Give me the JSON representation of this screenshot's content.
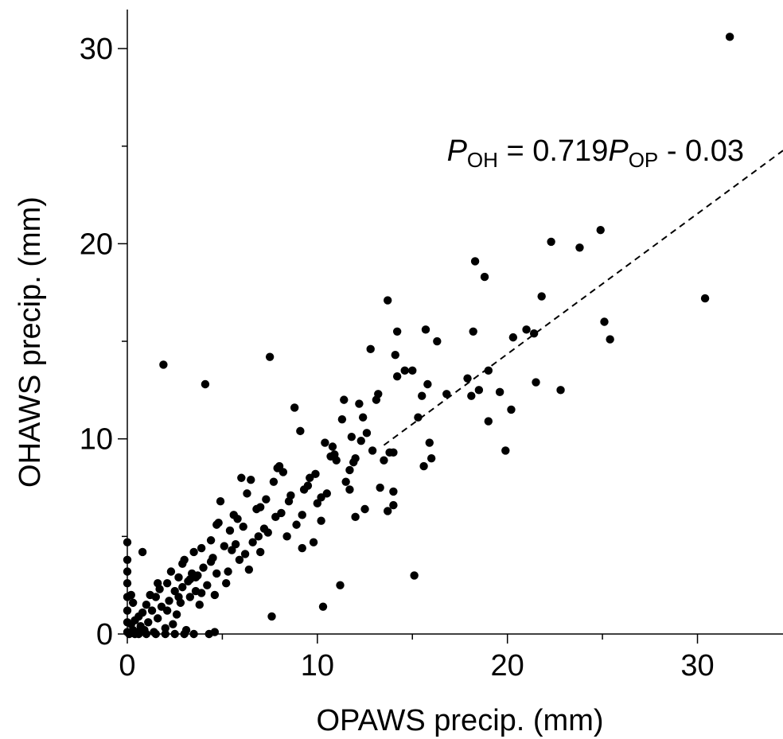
{
  "chart_data": {
    "type": "scatter",
    "xlabel": "OPAWS precip. (mm)",
    "ylabel": "OHAWS  precip. (mm)",
    "xlim": [
      0,
      34.5
    ],
    "ylim": [
      0,
      32
    ],
    "x_ticks": [
      0,
      10,
      20,
      30
    ],
    "y_ticks": [
      0,
      10,
      20,
      30
    ],
    "grid": false,
    "legend": "none",
    "point_color": "#000000",
    "fit_line": {
      "slope": 0.719,
      "intercept": -0.03,
      "style": "dashed",
      "equation": {
        "lhs_var": "P",
        "lhs_sub": "OH",
        "eq_mid": " = 0.719",
        "rhs_var": "P",
        "rhs_sub": "OP",
        "rhs_tail": " - 0.03"
      }
    },
    "points": [
      [
        31.7,
        30.6
      ],
      [
        30.4,
        17.2
      ],
      [
        25.4,
        15.1
      ],
      [
        25.1,
        16.0
      ],
      [
        24.9,
        20.7
      ],
      [
        23.8,
        19.8
      ],
      [
        22.8,
        12.5
      ],
      [
        22.3,
        20.1
      ],
      [
        21.8,
        17.3
      ],
      [
        21.5,
        12.9
      ],
      [
        21.4,
        15.4
      ],
      [
        21.0,
        15.6
      ],
      [
        20.3,
        15.2
      ],
      [
        20.2,
        11.5
      ],
      [
        19.9,
        9.4
      ],
      [
        19.6,
        12.4
      ],
      [
        19.0,
        13.5
      ],
      [
        19.0,
        10.9
      ],
      [
        18.8,
        18.3
      ],
      [
        18.5,
        12.5
      ],
      [
        18.3,
        19.1
      ],
      [
        18.2,
        15.5
      ],
      [
        18.1,
        12.2
      ],
      [
        17.9,
        13.1
      ],
      [
        16.8,
        12.3
      ],
      [
        16.3,
        15.0
      ],
      [
        16.0,
        9.0
      ],
      [
        15.9,
        9.8
      ],
      [
        15.8,
        12.8
      ],
      [
        15.7,
        15.6
      ],
      [
        15.6,
        8.6
      ],
      [
        15.5,
        12.2
      ],
      [
        15.3,
        11.1
      ],
      [
        15.1,
        3.0
      ],
      [
        15.0,
        13.5
      ],
      [
        14.6,
        13.5
      ],
      [
        14.2,
        15.5
      ],
      [
        14.2,
        13.2
      ],
      [
        14.1,
        14.3
      ],
      [
        14.0,
        9.3
      ],
      [
        14.0,
        7.3
      ],
      [
        14.0,
        6.6
      ],
      [
        13.8,
        9.3
      ],
      [
        13.7,
        17.1
      ],
      [
        13.7,
        6.3
      ],
      [
        13.3,
        7.5
      ],
      [
        13.2,
        12.3
      ],
      [
        13.1,
        12.0
      ],
      [
        12.8,
        14.6
      ],
      [
        12.6,
        10.3
      ],
      [
        12.5,
        6.4
      ],
      [
        12.4,
        11.1
      ],
      [
        12.3,
        9.9
      ],
      [
        12.2,
        11.8
      ],
      [
        12.0,
        9.0
      ],
      [
        12.0,
        6.0
      ],
      [
        11.8,
        10.1
      ],
      [
        11.7,
        8.4
      ],
      [
        11.5,
        7.8
      ],
      [
        11.4,
        12.0
      ],
      [
        11.3,
        11.0
      ],
      [
        11.2,
        2.5
      ],
      [
        11.0,
        8.9
      ],
      [
        10.9,
        9.2
      ],
      [
        10.7,
        9.1
      ],
      [
        10.5,
        7.2
      ],
      [
        10.4,
        9.8
      ],
      [
        10.3,
        1.4
      ],
      [
        10.2,
        5.8
      ],
      [
        10.0,
        6.7
      ],
      [
        9.8,
        4.7
      ],
      [
        9.6,
        8.0
      ],
      [
        9.3,
        7.4
      ],
      [
        9.2,
        6.1
      ],
      [
        9.1,
        10.4
      ],
      [
        8.8,
        11.6
      ],
      [
        8.5,
        6.8
      ],
      [
        8.4,
        5.0
      ],
      [
        8.2,
        8.3
      ],
      [
        8.0,
        8.6
      ],
      [
        7.9,
        8.5
      ],
      [
        7.7,
        7.8
      ],
      [
        7.5,
        14.2
      ],
      [
        7.6,
        0.9
      ],
      [
        7.3,
        6.9
      ],
      [
        7.2,
        5.4
      ],
      [
        7.0,
        4.2
      ],
      [
        6.8,
        6.4
      ],
      [
        6.5,
        7.9
      ],
      [
        6.3,
        7.2
      ],
      [
        6.1,
        5.5
      ],
      [
        6.0,
        8.0
      ],
      [
        5.9,
        3.8
      ],
      [
        5.7,
        4.6
      ],
      [
        5.6,
        6.1
      ],
      [
        5.4,
        5.3
      ],
      [
        5.3,
        3.2
      ],
      [
        5.1,
        4.5
      ],
      [
        4.9,
        6.8
      ],
      [
        4.8,
        5.7
      ],
      [
        4.7,
        3.1
      ],
      [
        4.6,
        2.0
      ],
      [
        4.5,
        3.9
      ],
      [
        4.4,
        4.8
      ],
      [
        4.3,
        0.0
      ],
      [
        4.2,
        2.5
      ],
      [
        4.1,
        12.8
      ],
      [
        4.0,
        3.4
      ],
      [
        3.9,
        4.4
      ],
      [
        3.8,
        1.5
      ],
      [
        3.7,
        3.0
      ],
      [
        3.6,
        2.2
      ],
      [
        3.5,
        4.2
      ],
      [
        3.4,
        3.1
      ],
      [
        3.3,
        1.9
      ],
      [
        3.2,
        2.7
      ],
      [
        3.1,
        0.2
      ],
      [
        3.0,
        3.8
      ],
      [
        2.9,
        2.4
      ],
      [
        2.8,
        1.6
      ],
      [
        2.7,
        2.9
      ],
      [
        2.6,
        1.0
      ],
      [
        2.5,
        2.2
      ],
      [
        2.4,
        0.5
      ],
      [
        2.3,
        3.2
      ],
      [
        2.2,
        1.7
      ],
      [
        2.1,
        2.6
      ],
      [
        2.0,
        0.3
      ],
      [
        1.9,
        13.8
      ],
      [
        1.8,
        1.4
      ],
      [
        1.7,
        2.3
      ],
      [
        1.6,
        0.8
      ],
      [
        1.5,
        1.9
      ],
      [
        1.4,
        0.1
      ],
      [
        1.3,
        1.2
      ],
      [
        1.2,
        2.0
      ],
      [
        1.1,
        0.6
      ],
      [
        1.0,
        1.5
      ],
      [
        0.9,
        0.2
      ],
      [
        0.8,
        1.1
      ],
      [
        0.8,
        4.2
      ],
      [
        0.7,
        0.4
      ],
      [
        0.6,
        0.9
      ],
      [
        0.5,
        0.1
      ],
      [
        0.4,
        0.7
      ],
      [
        0.3,
        0.2
      ],
      [
        0.2,
        0.5
      ],
      [
        0.1,
        0.0
      ],
      [
        0.0,
        4.7
      ],
      [
        0.0,
        3.8
      ],
      [
        0.0,
        3.2
      ],
      [
        0.0,
        2.6
      ],
      [
        0.0,
        1.9
      ],
      [
        0.0,
        1.2
      ],
      [
        0.0,
        0.6
      ],
      [
        0.0,
        0.1
      ],
      [
        0.2,
        2.0
      ],
      [
        0.3,
        1.6
      ],
      [
        0.4,
        0.0
      ],
      [
        0.6,
        0.0
      ],
      [
        1.0,
        0.0
      ],
      [
        1.5,
        0.0
      ],
      [
        2.0,
        0.0
      ],
      [
        2.5,
        0.0
      ],
      [
        3.0,
        0.0
      ],
      [
        3.5,
        0.0
      ],
      [
        4.6,
        0.1
      ],
      [
        9.2,
        4.4
      ],
      [
        7.0,
        6.5
      ],
      [
        6.6,
        4.7
      ],
      [
        5.8,
        5.9
      ],
      [
        6.9,
        5.0
      ],
      [
        8.9,
        5.6
      ],
      [
        10.2,
        7.0
      ],
      [
        11.7,
        7.4
      ],
      [
        12.9,
        9.4
      ],
      [
        6.4,
        3.3
      ],
      [
        5.2,
        2.6
      ],
      [
        4.7,
        5.6
      ],
      [
        3.9,
        2.1
      ],
      [
        3.3,
        2.8
      ],
      [
        2.9,
        3.6
      ],
      [
        2.1,
        1.2
      ],
      [
        1.6,
        2.6
      ],
      [
        7.8,
        6.0
      ],
      [
        8.6,
        7.1
      ],
      [
        9.9,
        8.2
      ],
      [
        10.8,
        9.6
      ],
      [
        11.9,
        8.8
      ],
      [
        13.5,
        8.9
      ],
      [
        6.2,
        4.1
      ],
      [
        5.5,
        4.3
      ],
      [
        7.4,
        5.2
      ],
      [
        8.1,
        6.2
      ],
      [
        9.5,
        7.6
      ],
      [
        4.4,
        3.7
      ],
      [
        3.6,
        2.9
      ],
      [
        2.7,
        1.9
      ]
    ]
  }
}
